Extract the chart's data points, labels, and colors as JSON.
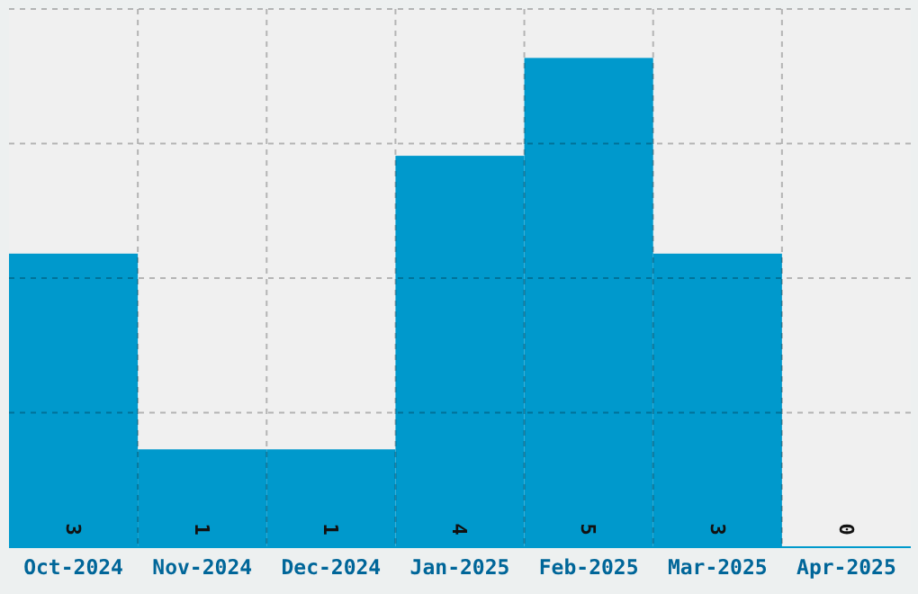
{
  "chart_data": {
    "type": "bar",
    "categories": [
      "Oct-2024",
      "Nov-2024",
      "Dec-2024",
      "Jan-2025",
      "Feb-2025",
      "Mar-2025",
      "Apr-2025"
    ],
    "values": [
      3,
      1,
      1,
      4,
      5,
      3,
      0
    ],
    "color": "#0099cc",
    "ylim": [
      0,
      5.5
    ],
    "yticks": [
      {
        "value": 0,
        "label": null
      },
      {
        "value": 1.375,
        "label": null
      },
      {
        "value": 2.75,
        "label": null
      },
      {
        "value": 4.125,
        "label": null
      },
      {
        "value": 5.5,
        "label": null
      }
    ],
    "grid": true,
    "data_labels": true
  }
}
